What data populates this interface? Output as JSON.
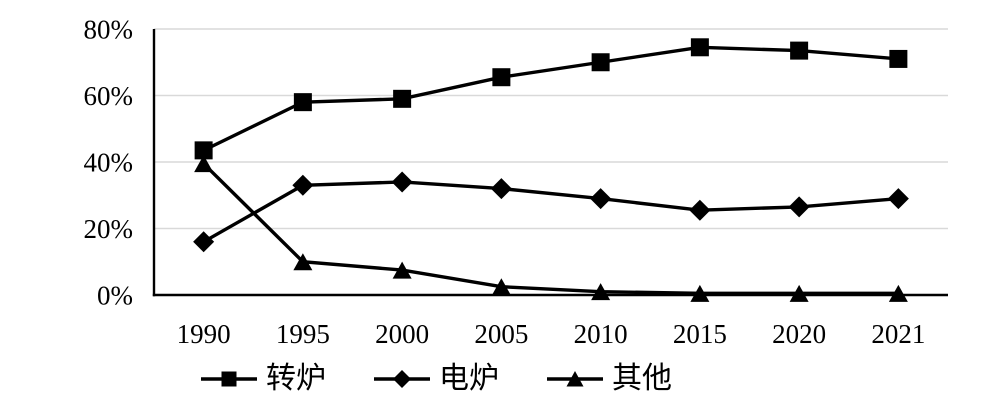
{
  "chart_data": {
    "type": "line",
    "title": "",
    "categories": [
      "1990",
      "1995",
      "2000",
      "2005",
      "2010",
      "2015",
      "2020",
      "2021"
    ],
    "series": [
      {
        "name": "转炉",
        "marker": "square",
        "values": [
          43.5,
          58,
          59,
          65.5,
          70,
          74.5,
          73.5,
          71
        ]
      },
      {
        "name": "电炉",
        "marker": "diamond",
        "values": [
          16,
          33,
          34,
          32,
          29,
          25.5,
          26.5,
          29
        ]
      },
      {
        "name": "其他",
        "marker": "triangle",
        "values": [
          39.5,
          10,
          7.5,
          2.5,
          1,
          0.5,
          0.5,
          0.5
        ]
      }
    ],
    "xlabel": "",
    "ylabel": "",
    "ylim": [
      0,
      80
    ],
    "y_tick_values": [
      0,
      20,
      40,
      60,
      80
    ],
    "y_tick_labels": [
      "0%",
      "20%",
      "40%",
      "60%",
      "80%"
    ],
    "grid": true,
    "legend_position": "bottom",
    "colors": {
      "line": "#000000",
      "marker": "#000000",
      "axis": "#000000",
      "gridline": "#d9d9d9",
      "text": "#000000",
      "background": "#ffffff"
    }
  },
  "legend": {
    "items": [
      {
        "label": "转炉",
        "icon": "square-marker-icon"
      },
      {
        "label": "电炉",
        "icon": "diamond-marker-icon"
      },
      {
        "label": "其他",
        "icon": "triangle-marker-icon"
      }
    ]
  }
}
